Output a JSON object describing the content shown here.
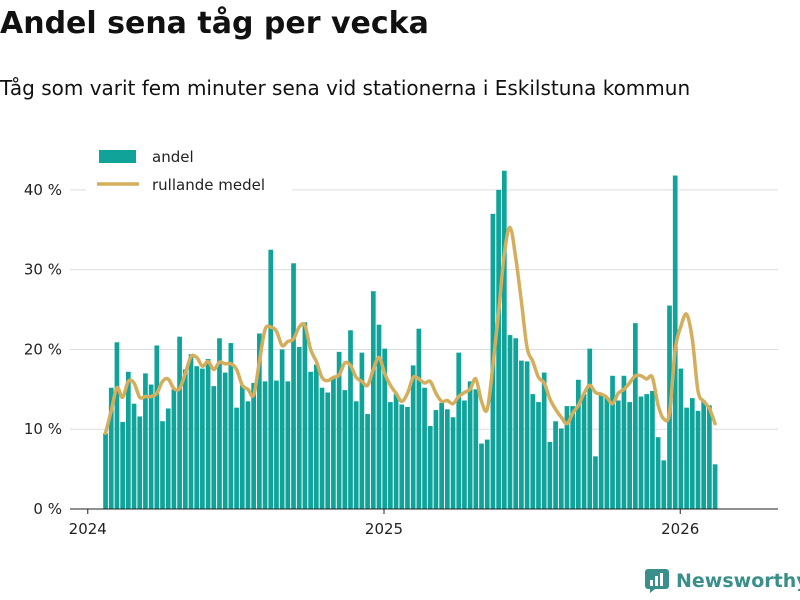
{
  "header": {
    "title": "Andel sena tåg per vecka",
    "subtitle": "Tåg som varit fem minuter sena vid stationerna i Eskilstuna kommun"
  },
  "brand": {
    "name": "Newsworthy",
    "color": "#3b8f8a"
  },
  "colors": {
    "bar": "#0fa39a",
    "line": "#d4ae5c",
    "grid": "#dddddd"
  },
  "chart_data": {
    "type": "bar",
    "title": "Andel sena tåg per vecka",
    "subtitle": "Tåg som varit fem minuter sena vid stationerna i Eskilstuna kommun",
    "xlabel": "",
    "ylabel": "",
    "ylim": [
      0,
      45
    ],
    "y_ticks": [
      0,
      10,
      20,
      30,
      40
    ],
    "y_tick_labels": [
      "0 %",
      "10 %",
      "20 %",
      "30 %",
      "40 %"
    ],
    "x_ticks": [
      2024,
      2025,
      2026
    ],
    "x_tick_labels": [
      "2024",
      "2025",
      "2026"
    ],
    "x_range": [
      2023.94,
      2026.33
    ],
    "grid": true,
    "legend_position": "top-left",
    "series": [
      {
        "name": "andel",
        "type": "bar",
        "start": 2024.06,
        "step": 0.01923,
        "values": [
          9.5,
          15.2,
          20.9,
          10.9,
          17.2,
          13.2,
          11.6,
          17.0,
          15.6,
          20.5,
          11.0,
          12.6,
          15.0,
          21.6,
          17.5,
          19.4,
          17.9,
          17.6,
          18.8,
          15.4,
          21.4,
          17.1,
          20.8,
          12.7,
          15.5,
          13.5,
          15.8,
          22.0,
          16.0,
          32.5,
          16.1,
          20.0,
          16.0,
          30.8,
          20.3,
          23.4,
          17.2,
          18.1,
          15.2,
          14.6,
          16.5,
          19.7,
          14.9,
          22.4,
          13.5,
          19.6,
          11.9,
          27.3,
          23.1,
          20.1,
          13.4,
          14.4,
          13.1,
          12.8,
          18.0,
          22.6,
          15.2,
          10.4,
          12.4,
          13.3,
          12.5,
          11.5,
          19.6,
          13.6,
          16.0,
          15.0,
          8.2,
          8.7,
          37.0,
          40.0,
          42.4,
          21.8,
          21.4,
          18.6,
          18.5,
          14.4,
          13.4,
          17.1,
          8.4,
          11.0,
          10.1,
          12.9,
          12.9,
          16.2,
          14.4,
          20.1,
          6.6,
          14.5,
          14.0,
          16.7,
          13.6,
          16.7,
          13.4,
          23.3,
          14.1,
          14.4,
          14.8,
          9.0,
          6.1,
          25.5,
          41.8,
          17.6,
          12.7,
          13.9,
          12.3,
          13.6,
          13.0,
          5.6
        ]
      },
      {
        "name": "rullande medel",
        "type": "line",
        "start": 2024.06,
        "step": 0.01923,
        "values": [
          9.5,
          12.3,
          15.2,
          14.0,
          16.0,
          15.8,
          14.0,
          14.1,
          14.1,
          14.5,
          16.0,
          16.3,
          15.1,
          15.1,
          17.0,
          19.1,
          19.0,
          17.9,
          18.5,
          17.5,
          18.4,
          18.2,
          18.2,
          17.5,
          15.5,
          15.0,
          14.3,
          18.5,
          22.5,
          22.8,
          22.3,
          20.5,
          21.0,
          21.3,
          22.8,
          23.0,
          20.0,
          18.5,
          16.5,
          16.1,
          16.5,
          16.8,
          18.3,
          18.0,
          16.5,
          16.0,
          15.5,
          17.5,
          19.0,
          17.0,
          15.5,
          14.5,
          13.5,
          14.5,
          16.5,
          16.3,
          15.8,
          16.0,
          14.5,
          13.5,
          13.6,
          13.2,
          14.1,
          14.6,
          15.0,
          16.3,
          13.5,
          12.5,
          18.0,
          24.6,
          32.0,
          35.3,
          31.5,
          26.0,
          20.2,
          18.5,
          16.5,
          15.8,
          13.8,
          12.5,
          11.5,
          10.7,
          12.0,
          13.0,
          14.5,
          15.5,
          14.6,
          14.4,
          14.0,
          13.2,
          14.5,
          15.0,
          15.8,
          16.7,
          16.7,
          16.3,
          16.5,
          13.0,
          11.3,
          12.0,
          20.0,
          22.9,
          24.4,
          21.3,
          14.8,
          13.5,
          12.6,
          10.7
        ]
      }
    ]
  },
  "legend": {
    "bar_label": "andel",
    "line_label": "rullande medel"
  }
}
